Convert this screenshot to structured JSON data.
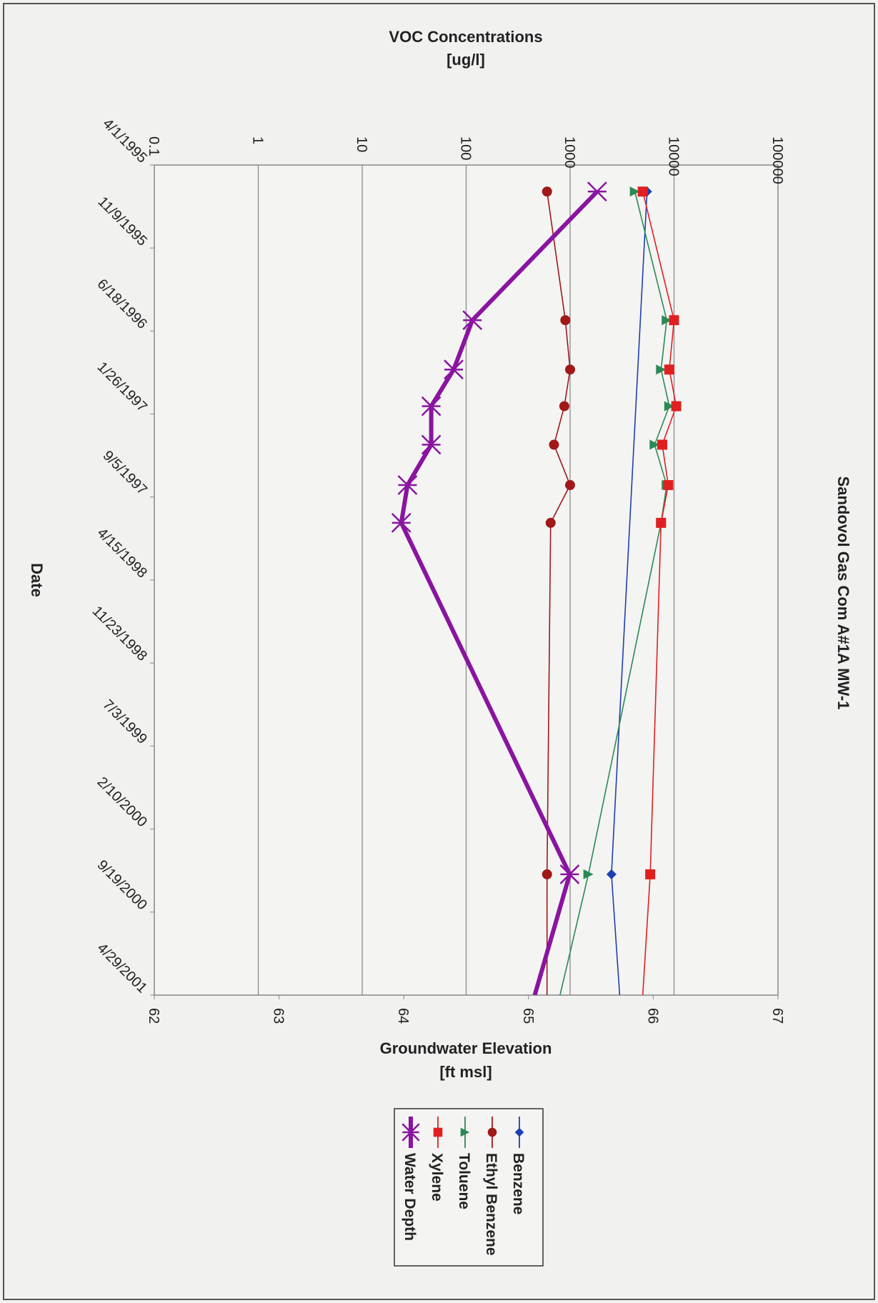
{
  "chart_data": {
    "type": "line",
    "title": "Sandovol Gas Com A#1A MW-1",
    "xlabel": "Date",
    "x_ticks": [
      "4/1/1995",
      "11/9/1995",
      "6/18/1996",
      "1/26/1997",
      "9/5/1997",
      "4/15/1998",
      "11/23/1998",
      "7/3/1999",
      "2/10/2000",
      "9/19/2000",
      "4/29/2001"
    ],
    "xlim": [
      "4/1/1995",
      "4/29/2001"
    ],
    "primary_axis": {
      "label_line1": "VOC Concentrations",
      "label_line2": "[ug/l]",
      "scale": "log",
      "ylim": [
        0.1,
        100000
      ],
      "ticks": [
        "0.1",
        "1",
        "10",
        "100",
        "1000",
        "10000",
        "100000"
      ]
    },
    "secondary_axis": {
      "label_line1": "Groundwater Elevation",
      "label_line2": "[ft msl]",
      "scale": "linear",
      "ylim": [
        62,
        67
      ],
      "ticks": [
        "62",
        "63",
        "64",
        "65",
        "66",
        "67"
      ]
    },
    "grid": true,
    "legend_position": "right",
    "series": [
      {
        "name": "Benzene",
        "axis": "primary",
        "color": "#1f3fb0",
        "marker": "diamond",
        "points": [
          {
            "date": "1995-06-11",
            "value": 5500
          },
          {
            "date": "2000-06-10",
            "value": 2500
          }
        ],
        "line_end": {
          "date": "2001-04-29",
          "value": 3000
        }
      },
      {
        "name": "Ethyl Benzene",
        "axis": "primary",
        "color": "#a01818",
        "marker": "circle",
        "points": [
          {
            "date": "1995-06-11",
            "value": 600
          },
          {
            "date": "1996-05-20",
            "value": 900
          },
          {
            "date": "1996-09-29",
            "value": 1000
          },
          {
            "date": "1997-01-05",
            "value": 880
          },
          {
            "date": "1997-04-18",
            "value": 700
          },
          {
            "date": "1997-08-04",
            "value": 1000
          },
          {
            "date": "1997-11-13",
            "value": 650
          },
          {
            "date": "2000-06-10",
            "value": 600
          }
        ],
        "line_end": {
          "date": "2001-04-29",
          "value": 600
        }
      },
      {
        "name": "Toluene",
        "axis": "primary",
        "color": "#2a8a55",
        "marker": "triangle",
        "points": [
          {
            "date": "1995-06-11",
            "value": 4200
          },
          {
            "date": "1996-05-20",
            "value": 8500
          },
          {
            "date": "1996-09-29",
            "value": 7500
          },
          {
            "date": "1997-01-05",
            "value": 9000
          },
          {
            "date": "1997-04-18",
            "value": 6500
          },
          {
            "date": "1997-08-04",
            "value": 8500
          },
          {
            "date": "1997-11-13",
            "value": 7500
          },
          {
            "date": "2000-06-10",
            "value": 1500
          }
        ],
        "line_end": {
          "date": "2001-04-29",
          "value": 800
        }
      },
      {
        "name": "Xylene",
        "axis": "primary",
        "color": "#e02020",
        "marker": "square",
        "points": [
          {
            "date": "1995-06-11",
            "value": 5000
          },
          {
            "date": "1996-05-20",
            "value": 10000
          },
          {
            "date": "1996-09-29",
            "value": 9000
          },
          {
            "date": "1997-01-05",
            "value": 10500
          },
          {
            "date": "1997-04-18",
            "value": 7700
          },
          {
            "date": "1997-08-04",
            "value": 8800
          },
          {
            "date": "1997-11-13",
            "value": 7500
          },
          {
            "date": "2000-06-10",
            "value": 5900
          }
        ],
        "line_end": {
          "date": "2001-04-29",
          "value": 5000
        }
      },
      {
        "name": "Water Depth",
        "axis": "secondary",
        "color": "#8a14a0",
        "marker": "star",
        "bold": true,
        "points": [
          {
            "date": "1995-06-11",
            "value": 65.55
          },
          {
            "date": "1996-05-20",
            "value": 64.55
          },
          {
            "date": "1996-09-29",
            "value": 64.4
          },
          {
            "date": "1997-01-05",
            "value": 64.22
          },
          {
            "date": "1997-04-18",
            "value": 64.22
          },
          {
            "date": "1997-08-04",
            "value": 64.03
          },
          {
            "date": "1997-11-13",
            "value": 63.98
          },
          {
            "date": "2000-06-10",
            "value": 65.33
          }
        ],
        "line_end": {
          "date": "2001-04-29",
          "value": 65.05
        }
      }
    ]
  }
}
